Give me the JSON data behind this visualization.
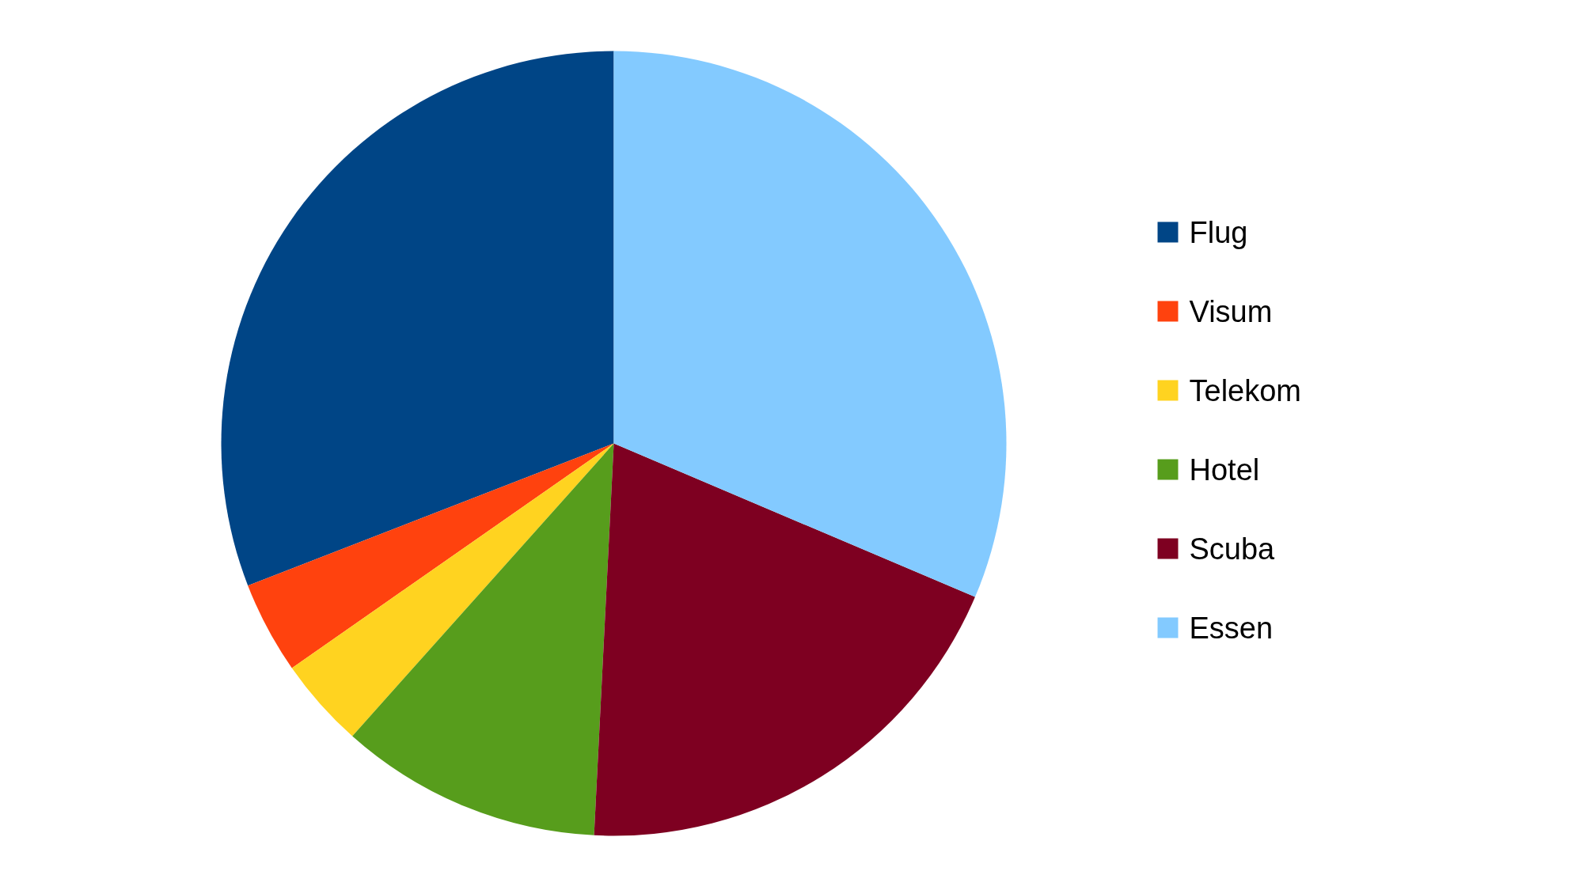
{
  "chart_data": {
    "type": "pie",
    "categories": [
      "Flug",
      "Visum",
      "Telekom",
      "Hotel",
      "Scuba",
      "Essen"
    ],
    "values": [
      30.9,
      3.8,
      3.7,
      10.8,
      19.4,
      31.4
    ],
    "colors": [
      "#004586",
      "#ff420e",
      "#ffd320",
      "#579d1c",
      "#7e0021",
      "#83caff"
    ],
    "legend": "right"
  }
}
